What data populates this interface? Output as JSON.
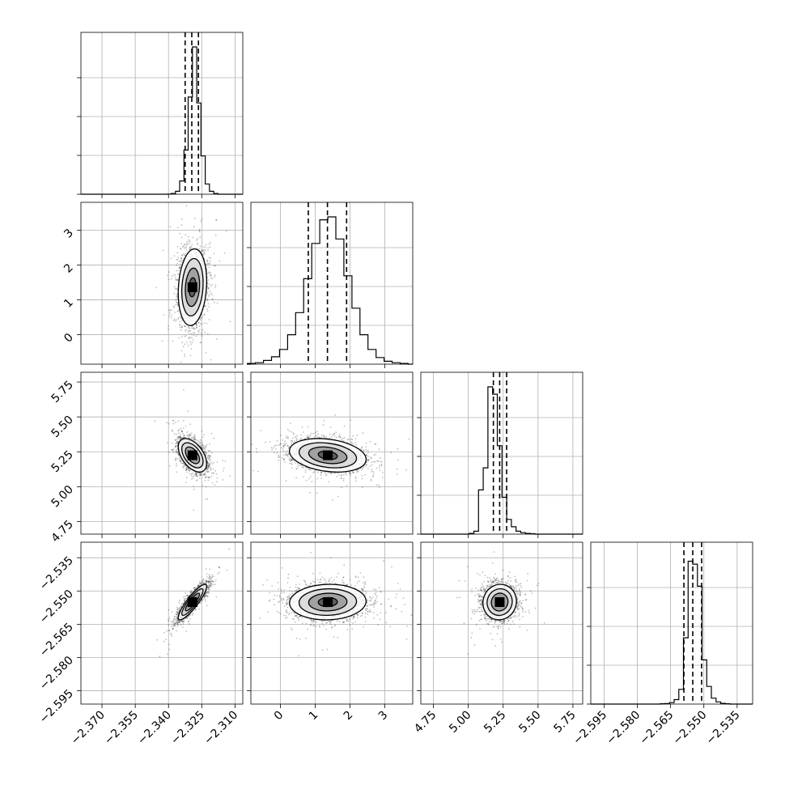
{
  "chart_data": {
    "type": "corner",
    "parameters": [
      {
        "ticks": [
          "−2.370",
          "−2.355",
          "−2.340",
          "−2.325",
          "−2.310"
        ],
        "tick_values": [
          -2.37,
          -2.355,
          -2.34,
          -2.325,
          -2.31
        ],
        "range": [
          -2.3795,
          -2.3065
        ],
        "q16": -2.3325,
        "median": -2.3295,
        "q84": -2.3265,
        "mean": -2.3292,
        "sd": 0.0032
      },
      {
        "ticks": [
          "0",
          "1",
          "2",
          "3"
        ],
        "tick_values": [
          0,
          1,
          2,
          3
        ],
        "range": [
          -0.85,
          3.8
        ],
        "q16": 0.8,
        "median": 1.35,
        "q84": 1.9,
        "mean": 1.36,
        "sd": 0.55
      },
      {
        "ticks": [
          "4.75",
          "5.00",
          "5.25",
          "5.50",
          "5.75"
        ],
        "tick_values": [
          4.75,
          5.0,
          5.25,
          5.5,
          5.75
        ],
        "range": [
          4.66,
          5.82
        ],
        "q16": 5.18,
        "median": 5.225,
        "q84": 5.275,
        "mean": 5.225,
        "sd": 0.06
      },
      {
        "ticks": [
          "−2.595",
          "−2.580",
          "−2.565",
          "−2.550",
          "−2.535"
        ],
        "tick_values": [
          -2.595,
          -2.58,
          -2.565,
          -2.55,
          -2.535
        ],
        "range": [
          -2.601,
          -2.528
        ],
        "q16": -2.559,
        "median": -2.555,
        "q84": -2.551,
        "mean": -2.555,
        "sd": 0.004
      }
    ],
    "correlations": {
      "0-1": 0.15,
      "0-2": -0.5,
      "0-3": 0.88,
      "1-2": -0.25,
      "1-3": 0.05,
      "2-3": 0.05
    },
    "histograms": [
      [
        0,
        0.001,
        0.005,
        0.02,
        0.09,
        0.3,
        0.66,
        1.0,
        0.62,
        0.26,
        0.07,
        0.02,
        0.005,
        0
      ],
      [
        0.005,
        0.01,
        0.025,
        0.05,
        0.1,
        0.2,
        0.35,
        0.58,
        0.82,
        0.98,
        1.0,
        0.85,
        0.6,
        0.38,
        0.2,
        0.1,
        0.045,
        0.02,
        0.01,
        0.005
      ],
      [
        0.0,
        0.005,
        0.02,
        0.3,
        0.45,
        1.0,
        0.95,
        0.6,
        0.25,
        0.1,
        0.05,
        0.02,
        0.01,
        0.005,
        0.003
      ],
      [
        0.0,
        0.002,
        0.004,
        0.01,
        0.03,
        0.1,
        0.45,
        0.97,
        0.95,
        0.8,
        0.3,
        0.12,
        0.04,
        0.015,
        0.005,
        0.002
      ]
    ]
  }
}
